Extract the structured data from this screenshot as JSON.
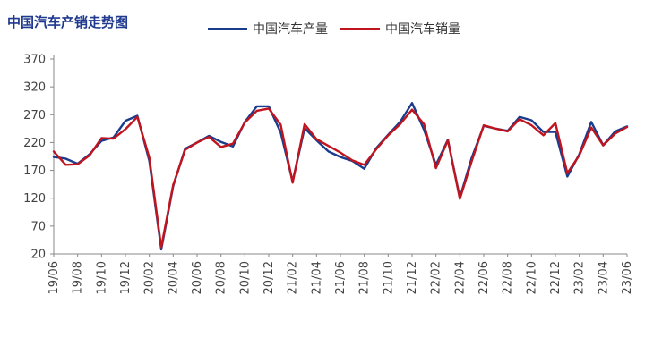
{
  "title": "中国汽车产销走势图",
  "chart_data": {
    "type": "line",
    "title": "中国汽车产销走势图",
    "xlabel": "",
    "ylabel": "",
    "ylim": [
      20,
      370
    ],
    "yticks": [
      20,
      70,
      120,
      170,
      220,
      270,
      320,
      370
    ],
    "xtick_labels": [
      "19/06",
      "19/08",
      "19/10",
      "19/12",
      "20/02",
      "20/04",
      "20/06",
      "20/08",
      "20/10",
      "20/12",
      "21/02",
      "21/04",
      "21/06",
      "21/08",
      "21/10",
      "21/12",
      "22/02",
      "22/04",
      "22/06",
      "22/08",
      "22/10",
      "22/12",
      "23/02",
      "23/04",
      "23/06"
    ],
    "x": [
      "19/06",
      "19/07",
      "19/08",
      "19/09",
      "19/10",
      "19/11",
      "19/12",
      "20/01",
      "20/02",
      "20/03",
      "20/04",
      "20/05",
      "20/06",
      "20/07",
      "20/08",
      "20/09",
      "20/10",
      "20/11",
      "20/12",
      "21/01",
      "21/02",
      "21/03",
      "21/04",
      "21/05",
      "21/06",
      "21/07",
      "21/08",
      "21/09",
      "21/10",
      "21/11",
      "21/12",
      "22/01",
      "22/02",
      "22/03",
      "22/04",
      "22/05",
      "22/06",
      "22/07",
      "22/08",
      "22/09",
      "22/10",
      "22/11",
      "22/12",
      "23/01",
      "23/02",
      "23/03",
      "23/04",
      "23/05",
      "23/06"
    ],
    "series": [
      {
        "name": "中国汽车产量",
        "color": "#1a3c8c",
        "values": [
          194,
          191,
          182,
          199,
          223,
          229,
          259,
          268,
          187,
          28,
          142,
          209,
          220,
          232,
          221,
          213,
          257,
          285,
          285,
          238,
          150,
          246,
          224,
          204,
          194,
          187,
          173,
          210,
          234,
          257,
          291,
          243,
          180,
          225,
          121,
          193,
          250,
          245,
          241,
          266,
          260,
          239,
          239,
          159,
          199,
          257,
          215,
          240,
          249
        ]
      },
      {
        "name": "中国汽车销量",
        "color": "#c0141e",
        "values": [
          204,
          180,
          181,
          197,
          228,
          227,
          244,
          266,
          193,
          32,
          144,
          207,
          220,
          230,
          212,
          218,
          256,
          277,
          281,
          252,
          148,
          253,
          226,
          214,
          202,
          188,
          180,
          208,
          233,
          253,
          279,
          253,
          174,
          224,
          119,
          187,
          251,
          245,
          240,
          262,
          251,
          233,
          255,
          165,
          197,
          247,
          215,
          236,
          248
        ]
      }
    ]
  }
}
